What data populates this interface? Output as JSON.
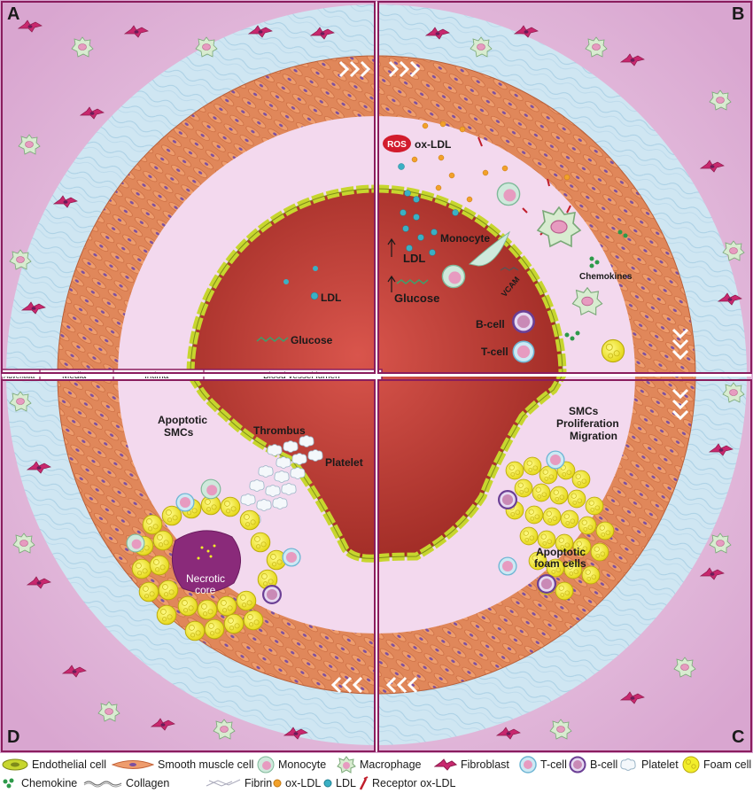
{
  "panels": {
    "a": "A",
    "b": "B",
    "c": "C",
    "d": "D"
  },
  "layers": {
    "adventitia": "Adventitia",
    "media": "Media",
    "intima": "Intima",
    "lumen": "Blood vessel lumen"
  },
  "panel_a": {
    "ldl": "LDL",
    "glucose": "Glucose"
  },
  "panel_b": {
    "ros": "ROS",
    "ox_ldl": "ox-LDL",
    "ldl": "LDL",
    "monocyte": "Monocyte",
    "vcam": "VCAM",
    "glucose": "Glucose",
    "chemokines": "Chemokines",
    "b_cell": "B-cell",
    "t_cell": "T-cell"
  },
  "panel_c": {
    "smcs": "SMCs",
    "proliferation": "Proliferation",
    "migration": "Migration",
    "apoptotic": "Apoptotic",
    "foam_cells": "foam cells"
  },
  "panel_d": {
    "apoptotic": "Apoptotic",
    "smcs": "SMCs",
    "thrombus": "Thrombus",
    "platelet": "Platelet",
    "necrotic": "Necrotic",
    "core": "core"
  },
  "legend": {
    "row1": [
      {
        "icon": "endothelial-cell-icon",
        "label": "Endothelial cell"
      },
      {
        "icon": "smooth-muscle-cell-icon",
        "label": "Smooth muscle cell"
      },
      {
        "icon": "monocyte-icon",
        "label": "Monocyte"
      },
      {
        "icon": "macrophage-icon",
        "label": "Macrophage"
      },
      {
        "icon": "fibroblast-icon",
        "label": "Fibroblast"
      },
      {
        "icon": "t-cell-icon",
        "label": "T-cell"
      },
      {
        "icon": "b-cell-icon",
        "label": "B-cell"
      },
      {
        "icon": "platelet-icon",
        "label": "Platelet"
      },
      {
        "icon": "foam-cell-icon",
        "label": "Foam cell"
      }
    ],
    "row2": [
      {
        "icon": "chemokine-icon",
        "label": "Chemokine"
      },
      {
        "icon": "collagen-icon",
        "label": "Collagen"
      },
      {
        "icon": "fibrin-icon",
        "label": "Fibrin"
      },
      {
        "icon": "ox-ldl-icon",
        "label": "ox-LDL"
      },
      {
        "icon": "ldl-icon",
        "label": "LDL"
      },
      {
        "icon": "receptor-ox-ldl-icon",
        "label": "Receptor ox-LDL"
      }
    ]
  },
  "colors": {
    "background": "#e7bfe0",
    "adventitia": "#cfe6f2",
    "media": "#e0875a",
    "intima": "#f4dcef",
    "lumen": "#b5352c",
    "endothelium": "#c7d62e",
    "foam_cell": "#f2ee2a",
    "ros": "#d21c2c",
    "ldl": "#3bb0c4",
    "ox_ldl": "#f2a12a",
    "fibroblast": "#c8286e",
    "frame": "#8a1d5e"
  }
}
